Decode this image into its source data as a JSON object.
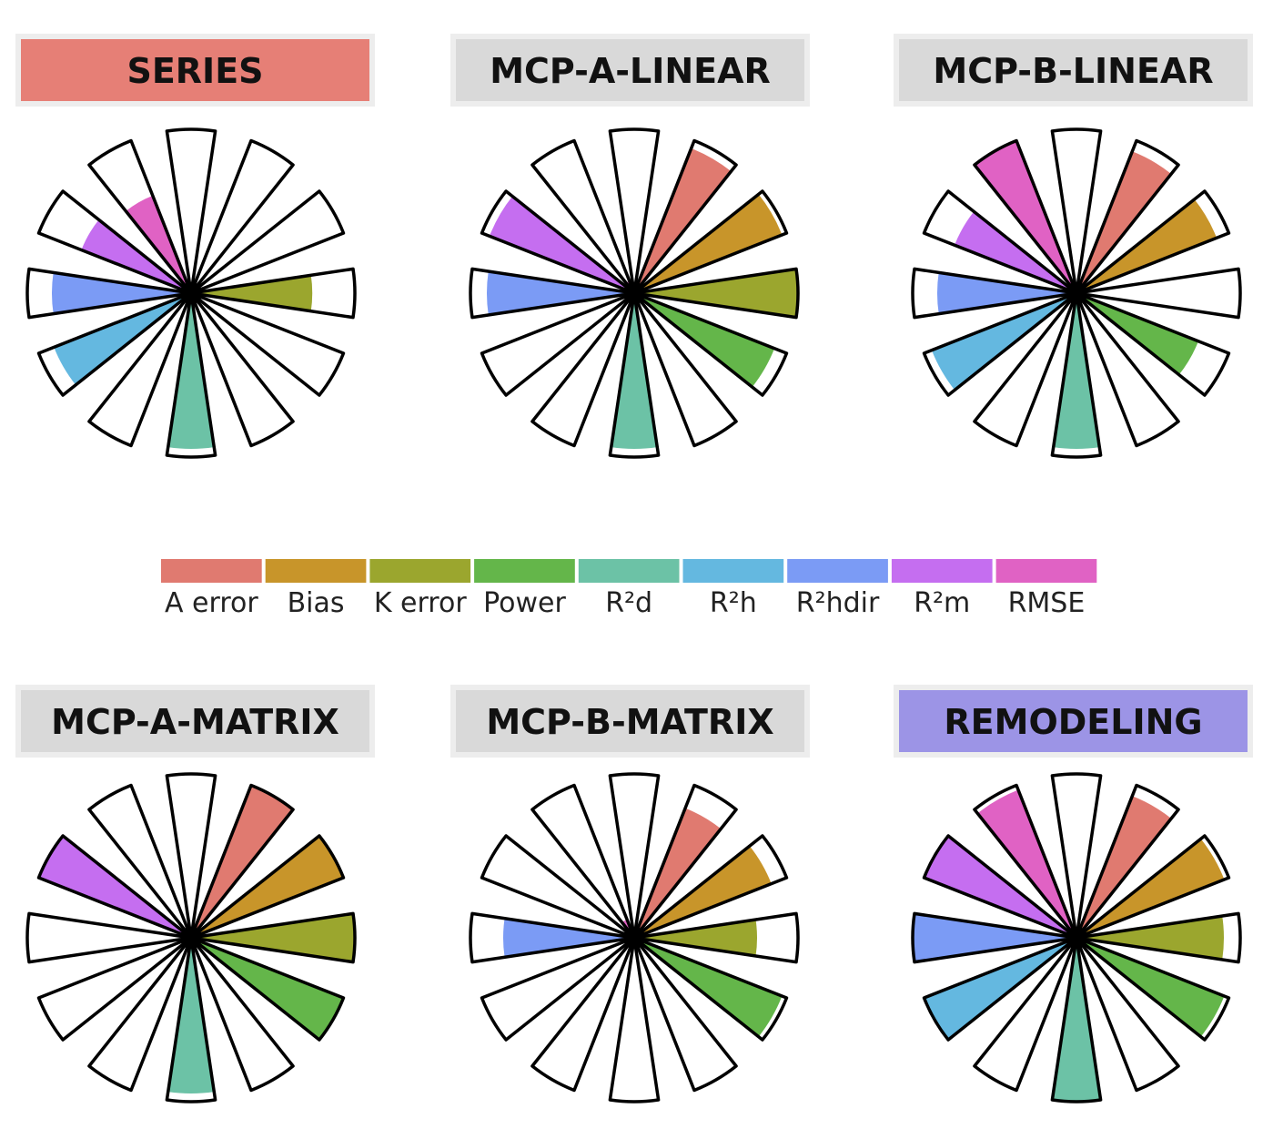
{
  "chart_data": {
    "type": "radial-bar",
    "metrics": [
      "A error",
      "Bias",
      "K error",
      "Power",
      "R²d",
      "R²h",
      "R²hdir",
      "R²m",
      "RMSE"
    ],
    "colors": {
      "A error": "#E07A70",
      "Bias": "#C8952A",
      "K error": "#9BA62E",
      "Power": "#64B64A",
      "R²d": "#6CC2A6",
      "R²h": "#64B8E0",
      "R²hdir": "#7B9BF5",
      "R²m": "#C56EF0",
      "RMSE": "#E062C4"
    },
    "legend": [
      "A error",
      "Bias",
      "K error",
      "Power",
      "R²d",
      "R²h",
      "R²hdir",
      "R²m",
      "RMSE"
    ],
    "panels": [
      {
        "title": "SERIES",
        "title_bg": "#E67F76",
        "values": {
          "A error": 0,
          "Bias": 0,
          "K error": 0.74,
          "Power": 0,
          "R²d": 0.95,
          "R²h": 0.9,
          "R²hdir": 0.85,
          "R²m": 0.72,
          "RMSE": 0.64
        }
      },
      {
        "title": "MCP-A-LINEAR",
        "title_bg": "#D9D9D9",
        "values": {
          "A error": 0.95,
          "Bias": 0.97,
          "K error": 1.0,
          "Power": 0.92,
          "R²d": 0.95,
          "R²h": 0,
          "R²hdir": 0.9,
          "R²m": 0.95,
          "RMSE": 0.08
        }
      },
      {
        "title": "MCP-B-LINEAR",
        "title_bg": "#D9D9D9",
        "values": {
          "A error": 0.93,
          "Bias": 0.92,
          "K error": 0,
          "Power": 0.8,
          "R²d": 0.95,
          "R²h": 0.95,
          "R²hdir": 0.85,
          "R²m": 0.8,
          "RMSE": 1.0
        }
      },
      {
        "title": "MCP-A-MATRIX",
        "title_bg": "#D9D9D9",
        "values": {
          "A error": 1.0,
          "Bias": 1.0,
          "K error": 1.0,
          "Power": 1.0,
          "R²d": 0.95,
          "R²h": 0,
          "R²hdir": 0,
          "R²m": 1.0,
          "RMSE": 0
        }
      },
      {
        "title": "MCP-B-MATRIX",
        "title_bg": "#D9D9D9",
        "values": {
          "A error": 0.85,
          "Bias": 0.9,
          "K error": 0.75,
          "Power": 0.97,
          "R²d": 0,
          "R²h": 0,
          "R²hdir": 0.8,
          "R²m": 0,
          "RMSE": 0.12
        }
      },
      {
        "title": "REMODELING",
        "title_bg": "#9C94E6",
        "values": {
          "A error": 0.93,
          "Bias": 0.97,
          "K error": 0.9,
          "Power": 0.97,
          "R²d": 1.0,
          "R²h": 1.0,
          "R²hdir": 1.0,
          "R²m": 1.0,
          "RMSE": 0.97
        }
      }
    ]
  }
}
